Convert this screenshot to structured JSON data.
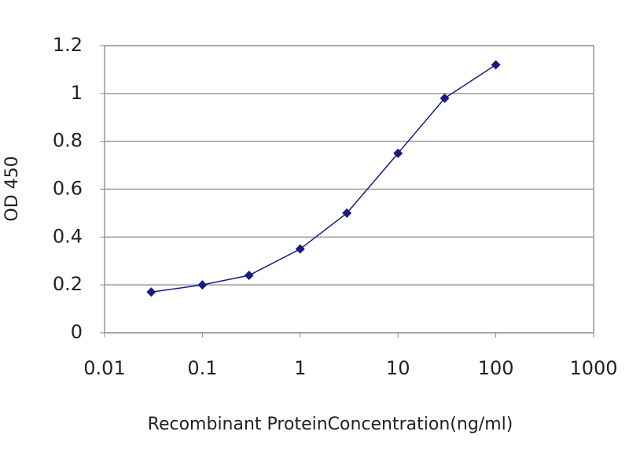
{
  "chart_data": {
    "type": "line",
    "xlabel": "Recombinant ProteinConcentration(ng/ml)",
    "ylabel": "OD 450",
    "x": [
      0.03,
      0.1,
      0.3,
      1,
      3,
      10,
      30,
      100
    ],
    "values": [
      0.17,
      0.2,
      0.24,
      0.35,
      0.5,
      0.75,
      0.98,
      1.12
    ],
    "color": "#1a1a80",
    "xscale": "log",
    "xlim": [
      0.01,
      1000
    ],
    "xticks": [
      0.01,
      0.1,
      1,
      10,
      100,
      1000
    ],
    "ylim": [
      0,
      1.2
    ],
    "yticks": [
      0,
      0.2,
      0.4,
      0.6,
      0.8,
      1,
      1.2
    ],
    "grid": true
  }
}
